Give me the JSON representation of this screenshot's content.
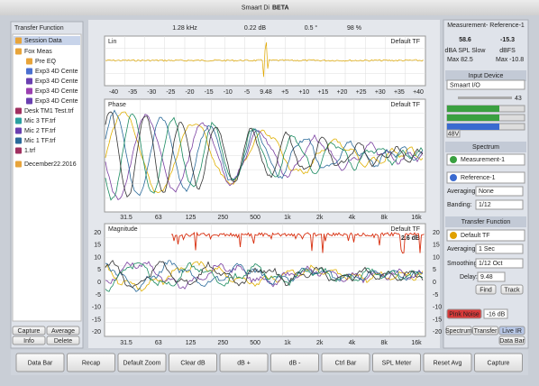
{
  "app_title": "Smaart Di",
  "app_badge": "BETA",
  "left_panel": {
    "title": "Transfer Function",
    "tree": [
      "Session Data",
      "Fox Meas",
      "Pre EQ",
      "Exp3 4D Cente",
      "Exp3 4D Cente",
      "Exp3 4D Cente",
      "Exp3 4D Cente",
      "Desk TM1 Test.trf",
      "Mic 3 TF.trf",
      "Mic 2 TF.trf",
      "Mic 1 TF.trf",
      "1.trf",
      "December22.2016"
    ],
    "buttons": [
      "Capture",
      "Average",
      "Info",
      "Delete"
    ]
  },
  "readouts": [
    "1.28 kHz",
    "0.22 dB",
    "0.5 °",
    "98 %"
  ],
  "lin_plot": {
    "label": "Lin",
    "trace": "Default TF",
    "x_labels": [
      "-40",
      "-35",
      "-30",
      "-25",
      "-20",
      "-15",
      "-10",
      "-5",
      "9.48",
      "+5",
      "+10",
      "+15",
      "+20",
      "+25",
      "+30",
      "+35",
      "+40"
    ]
  },
  "phase_plot": {
    "label": "Phase",
    "trace": "Default TF",
    "x_labels": [
      "31.5",
      "63",
      "125",
      "250",
      "500",
      "1k",
      "2k",
      "4k",
      "8k",
      "16k"
    ]
  },
  "magnitude_plot": {
    "label": "Magnitude",
    "trace": "Default TF",
    "offset": "2.6 dB",
    "y_labels": [
      "20",
      "15",
      "10",
      "5",
      "0",
      "-5",
      "-10",
      "-15",
      "-20"
    ],
    "x_labels": [
      "31.5",
      "63",
      "125",
      "250",
      "500",
      "1k",
      "2k",
      "4k",
      "8k",
      "16k"
    ]
  },
  "toolbar": [
    "Data Bar",
    "Recap",
    "Default Zoom",
    "Clear dB",
    "dB +",
    "dB -",
    "Ctrl Bar",
    "SPL Meter",
    "Reset Avg",
    "Capture"
  ],
  "right_panel": {
    "meter_title": "Measurement- Reference-1",
    "spl": "58.6",
    "dbfs": "-15.3",
    "spl_label": "dBA SPL Slow",
    "dbfs_label": "dBFS",
    "spl_max": "Max  82.5",
    "dbfs_max": "Max  -10.8",
    "input_header": "Input Device",
    "input_device": "Smaart I/O",
    "gain": "43",
    "phantom": "48V",
    "spectrum_header": "Spectrum",
    "spectrum_1": "Measurement-1",
    "spectrum_2": "Reference-1",
    "spec_avg_label": "Averaging:",
    "spec_avg": "None",
    "banding_label": "Banding:",
    "banding": "1/12",
    "tf_header": "Transfer Function",
    "tf_name": "Default TF",
    "tf_avg_label": "Averaging:",
    "tf_avg": "1 Sec",
    "smooth_label": "Smoothing:",
    "smooth": "1/12 Oct",
    "delay_label": "Delay:",
    "delay": "9.48",
    "find": "Find",
    "track": "Track",
    "pink": "Pink Noise",
    "pink_level": "-16 dB",
    "tabs": [
      "Spectrum",
      "Transfer",
      "Live IR"
    ],
    "data_bar": "Data Bar"
  }
}
